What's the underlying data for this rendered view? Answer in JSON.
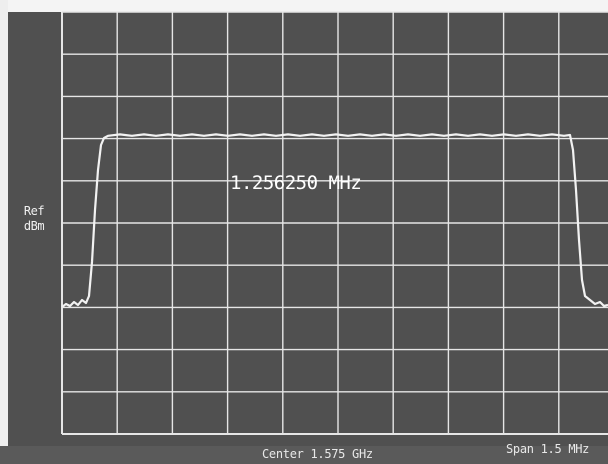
{
  "display": {
    "ref_line1": "Ref",
    "ref_line2": "dBm",
    "marker_readout": "1.256250 MHz",
    "center_label": "Center 1.575 GHz",
    "span_label": "Span 1.5 MHz",
    "trace_color": "#f2f2f2",
    "grid_color": "#e6e6e6",
    "background_color": "#505050"
  }
}
